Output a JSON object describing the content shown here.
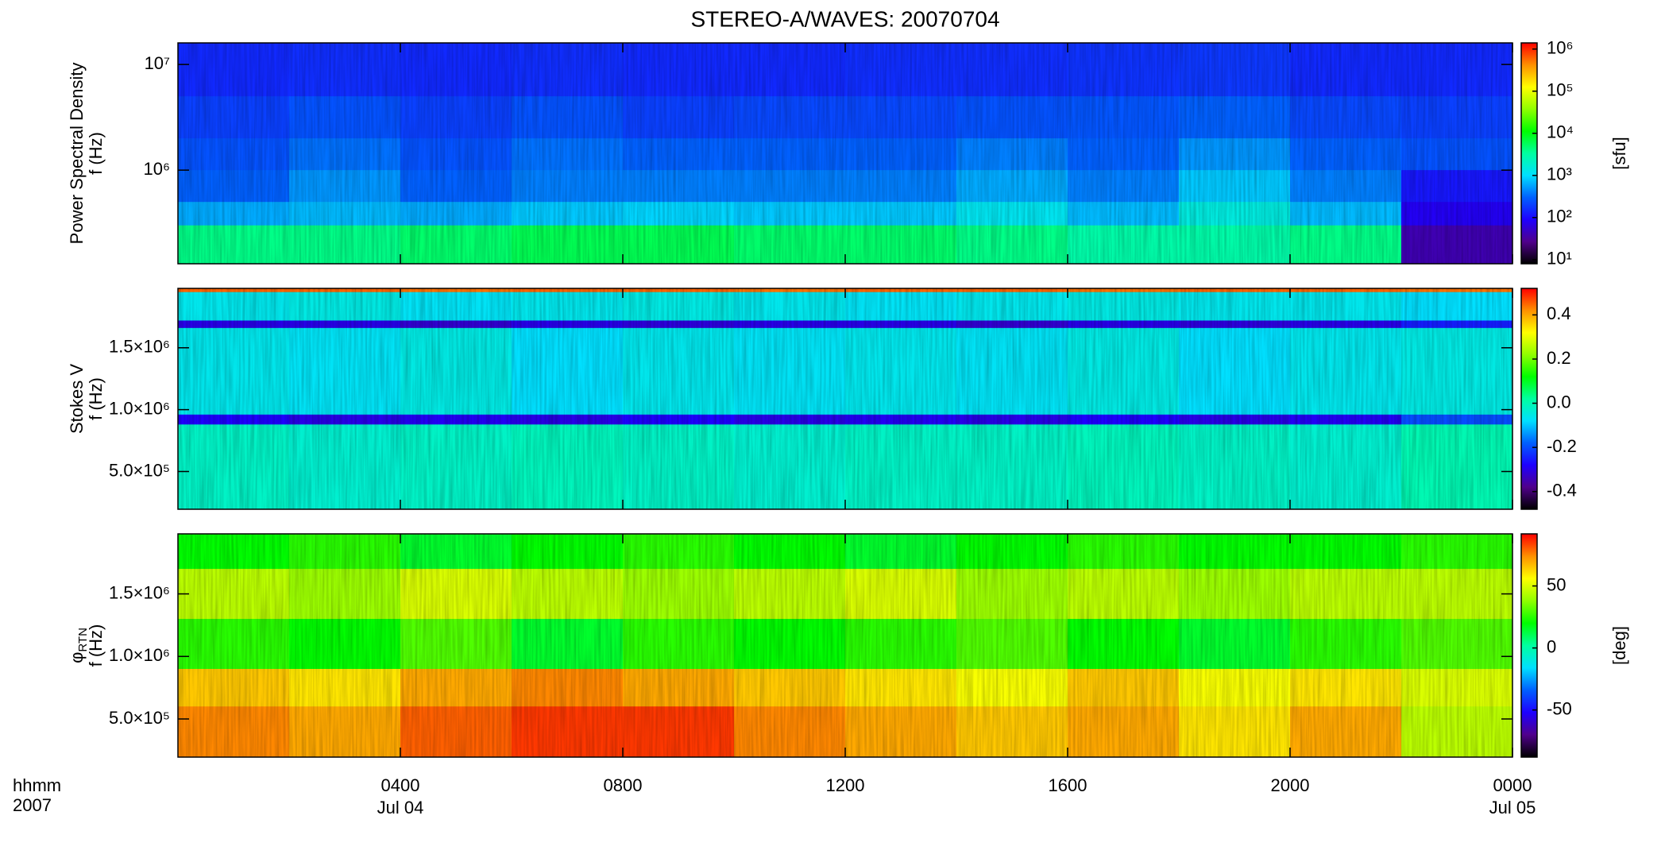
{
  "chart_data": {
    "type": "heatmap",
    "title": "STEREO-A/WAVES: 20070704",
    "xlim": [
      0,
      24
    ],
    "xticks": [
      {
        "value": 4,
        "label": "0400"
      },
      {
        "value": 8,
        "label": "0800"
      },
      {
        "value": 12,
        "label": "1200"
      },
      {
        "value": 16,
        "label": "1600"
      },
      {
        "value": 20,
        "label": "2000"
      },
      {
        "value": 24,
        "label": "0000"
      }
    ],
    "xtick_sublabels": [
      "Jul 04",
      null,
      null,
      null,
      null,
      "Jul 05"
    ],
    "x_corner_labels": [
      "hhmm",
      "2007"
    ],
    "panels": [
      {
        "ylabel": [
          {
            "text": "Power Spectral Density"
          },
          {
            "text": "f (Hz)"
          }
        ],
        "yscale": "log",
        "ylim": [
          130000,
          16000000
        ],
        "yticks": [
          {
            "value": 1000000,
            "label": "10⁶"
          },
          {
            "value": 10000000,
            "label": "10⁷"
          }
        ],
        "x_edges": [
          0,
          2,
          4,
          6,
          8,
          10,
          12,
          14,
          16,
          18,
          20,
          22,
          24
        ],
        "y_edges": [
          16000000,
          5000000,
          2000000,
          1000000,
          500000,
          300000,
          130000
        ],
        "values": [
          [
            150,
            160,
            150,
            160,
            150,
            150,
            160,
            160,
            170,
            180,
            150,
            150
          ],
          [
            200,
            250,
            200,
            250,
            200,
            220,
            220,
            250,
            260,
            300,
            220,
            200
          ],
          [
            250,
            350,
            250,
            350,
            300,
            300,
            300,
            400,
            300,
            500,
            300,
            250
          ],
          [
            300,
            500,
            300,
            400,
            400,
            400,
            400,
            600,
            400,
            800,
            400,
            120
          ],
          [
            600,
            700,
            600,
            800,
            900,
            800,
            800,
            1200,
            700,
            1500,
            700,
            80
          ],
          [
            4000,
            4000,
            5000,
            6000,
            6000,
            5000,
            5000,
            4000,
            3000,
            3000,
            4000,
            40
          ]
        ],
        "colorbar": {
          "scale": "log",
          "lim": [
            8,
            1400000
          ],
          "ticks": [
            {
              "value": 10,
              "label": "10¹"
            },
            {
              "value": 100,
              "label": "10²"
            },
            {
              "value": 1000,
              "label": "10³"
            },
            {
              "value": 10000,
              "label": "10⁴"
            },
            {
              "value": 100000,
              "label": "10⁵"
            },
            {
              "value": 1000000,
              "label": "10⁶"
            }
          ],
          "label": "[sfu]",
          "colors": [
            "#000000",
            "#50008c",
            "#1e00ff",
            "#0060ff",
            "#00e0ff",
            "#00ffa0",
            "#00ff00",
            "#90ff00",
            "#ffff00",
            "#ff9000",
            "#ff0000"
          ]
        }
      },
      {
        "ylabel": [
          {
            "text": "Stokes V"
          },
          {
            "text": "f (Hz)"
          }
        ],
        "yscale": "linear",
        "ylim": [
          195000,
          1980000
        ],
        "yticks": [
          {
            "value": 500000,
            "label": "5.0×10⁵"
          },
          {
            "value": 1000000,
            "label": "1.0×10⁶"
          },
          {
            "value": 1500000,
            "label": "1.5×10⁶"
          }
        ],
        "x_edges": [
          0,
          2,
          4,
          6,
          8,
          10,
          12,
          14,
          16,
          18,
          20,
          22,
          24
        ],
        "y_edges": [
          1980000,
          1950000,
          1720000,
          1660000,
          960000,
          880000,
          195000
        ],
        "values": [
          [
            0.45,
            0.45,
            0.44,
            0.45,
            0.45,
            0.44,
            0.45,
            0.45,
            0.44,
            0.45,
            0.45,
            0.44
          ],
          [
            -0.06,
            -0.05,
            -0.07,
            -0.06,
            -0.05,
            -0.06,
            -0.07,
            -0.06,
            -0.05,
            -0.06,
            -0.06,
            -0.08
          ],
          [
            -0.3,
            -0.3,
            -0.32,
            -0.3,
            -0.31,
            -0.3,
            -0.3,
            -0.32,
            -0.3,
            -0.31,
            -0.3,
            -0.25
          ],
          [
            -0.06,
            -0.07,
            -0.05,
            -0.08,
            -0.06,
            -0.07,
            -0.06,
            -0.07,
            -0.05,
            -0.08,
            -0.06,
            -0.05
          ],
          [
            -0.28,
            -0.3,
            -0.29,
            -0.3,
            -0.28,
            -0.3,
            -0.29,
            -0.3,
            -0.28,
            -0.3,
            -0.29,
            -0.2
          ],
          [
            -0.02,
            -0.03,
            -0.02,
            -0.01,
            -0.02,
            -0.03,
            -0.02,
            -0.02,
            -0.01,
            -0.02,
            -0.03,
            0.0
          ]
        ],
        "colorbar": {
          "scale": "linear",
          "lim": [
            -0.48,
            0.52
          ],
          "ticks": [
            0.4,
            0.2,
            {
              "value": 0,
              "label": "0.0"
            },
            -0.2,
            -0.4
          ],
          "colors": [
            "#000000",
            "#50008c",
            "#1e00ff",
            "#0060ff",
            "#00e0ff",
            "#00ffa0",
            "#00ff00",
            "#90ff00",
            "#ffff00",
            "#ff9000",
            "#ff0000"
          ]
        }
      },
      {
        "ylabel": [
          {
            "text": "φ",
            "sub": "RTN"
          },
          {
            "text": "f (Hz)"
          }
        ],
        "yscale": "linear",
        "ylim": [
          195000,
          1980000
        ],
        "yticks": [
          {
            "value": 500000,
            "label": "5.0×10⁵"
          },
          {
            "value": 1000000,
            "label": "1.0×10⁶"
          },
          {
            "value": 1500000,
            "label": "1.5×10⁶"
          }
        ],
        "x_edges": [
          0,
          2,
          4,
          6,
          8,
          10,
          12,
          14,
          16,
          18,
          20,
          22,
          24
        ],
        "y_edges": [
          1980000,
          1700000,
          1300000,
          900000,
          600000,
          195000
        ],
        "values": [
          [
            20,
            25,
            15,
            20,
            25,
            20,
            15,
            20,
            25,
            20,
            20,
            25
          ],
          [
            45,
            40,
            50,
            45,
            40,
            45,
            50,
            40,
            45,
            40,
            45,
            45
          ],
          [
            25,
            20,
            30,
            15,
            25,
            20,
            25,
            30,
            20,
            15,
            25,
            30
          ],
          [
            65,
            60,
            70,
            75,
            70,
            65,
            60,
            55,
            65,
            55,
            60,
            50
          ],
          [
            75,
            70,
            80,
            85,
            85,
            75,
            70,
            65,
            70,
            60,
            70,
            45
          ]
        ],
        "colorbar": {
          "scale": "linear",
          "lim": [
            -88,
            92
          ],
          "ticks": [
            50,
            0,
            -50
          ],
          "label": "[deg]",
          "colors": [
            "#000000",
            "#50008c",
            "#1e00ff",
            "#0060ff",
            "#00e0ff",
            "#00ffa0",
            "#00ff00",
            "#90ff00",
            "#ffff00",
            "#ff9000",
            "#ff0000"
          ]
        }
      }
    ]
  }
}
